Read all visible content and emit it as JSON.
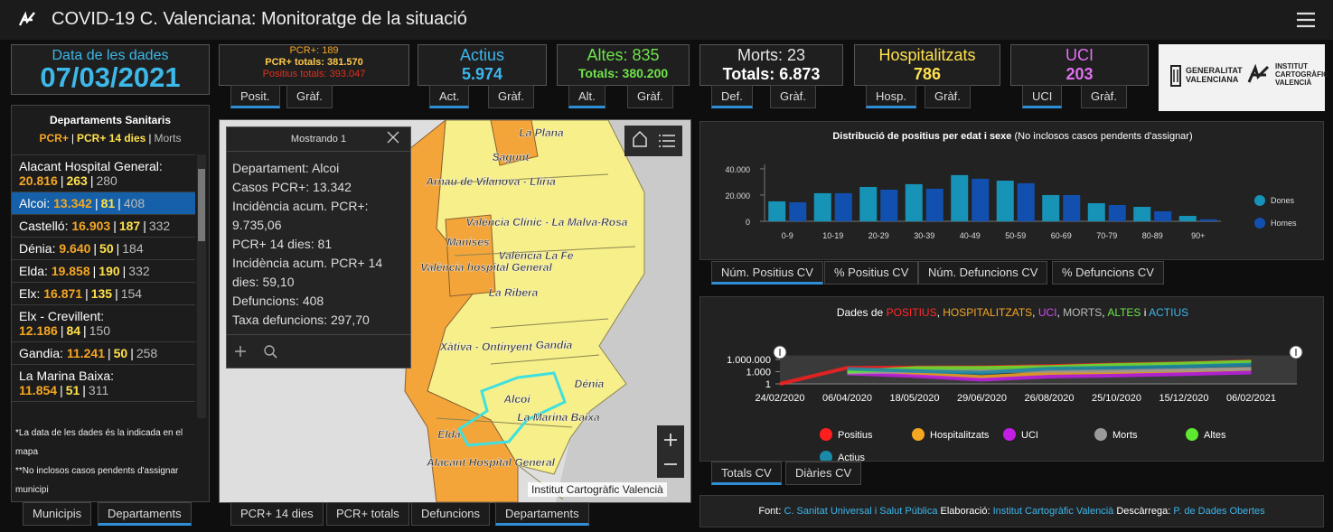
{
  "header": {
    "title": "COVID-19 C. Valenciana: Monitoratge de la situació"
  },
  "date_panel": {
    "label": "Data de les dades",
    "value": "07/03/2021"
  },
  "indicators": [
    {
      "lines": [
        {
          "text": "PCR+: 189",
          "color": "#f5a623"
        },
        {
          "text": "PCR+ totals: 381.570",
          "color": "#ffc94a"
        },
        {
          "text": "Positius totals: 393.047",
          "color": "#e0301e"
        }
      ],
      "tabs": [
        "Posit.",
        "Gràf."
      ]
    },
    {
      "lines": [
        {
          "text": "Actius",
          "color": "#3cb6ec"
        },
        {
          "text": "5.974",
          "color": "#3cb6ec"
        }
      ],
      "tabs": [
        "Act.",
        "Gràf."
      ]
    },
    {
      "lines": [
        {
          "text": "Altes: 835",
          "color": "#6fe34a"
        },
        {
          "text": "Totals: 380.200",
          "color": "#6fe34a"
        }
      ],
      "tabs": [
        "Alt.",
        "Gràf."
      ]
    },
    {
      "lines": [
        {
          "text": "Morts: 23",
          "color": "#e6e6e6"
        },
        {
          "text": "Totals: 6.873",
          "color": "#ffffff"
        }
      ],
      "tabs": [
        "Def.",
        "Gràf."
      ]
    },
    {
      "lines": [
        {
          "text": "Hospitalitzats",
          "color": "#ffe14d"
        },
        {
          "text": "786",
          "color": "#ffe14d"
        }
      ],
      "tabs": [
        "Hosp.",
        "Gràf."
      ]
    },
    {
      "lines": [
        {
          "text": "UCI",
          "color": "#e070f0"
        },
        {
          "text": "203",
          "color": "#e070f0"
        }
      ],
      "tabs": [
        "UCI",
        "Gràf."
      ]
    }
  ],
  "logos": {
    "generalitat": [
      "GENERALITAT",
      "VALENCIANA"
    ],
    "institut": [
      "INSTITUT",
      "CARTOGRÀFIC",
      "VALENCIÀ"
    ]
  },
  "departments": {
    "title": "Departaments Sanitaris",
    "separator": "|",
    "value_colors": [
      "#f5a623",
      "#ffe14d",
      "#bbbbbb"
    ],
    "legend": [
      "PCR+",
      "PCR+ 14 dies",
      "Morts"
    ],
    "items": [
      {
        "name": "Alacant Hospital General:",
        "pcr": "20.816",
        "pcr14": "263",
        "morts": "280"
      },
      {
        "name": "Alcoi:",
        "pcr": "13.342",
        "pcr14": "81",
        "morts": "408",
        "selected": true
      },
      {
        "name": "Castelló:",
        "pcr": "16.903",
        "pcr14": "187",
        "morts": "332"
      },
      {
        "name": "Dénia:",
        "pcr": "9.640",
        "pcr14": "50",
        "morts": "184"
      },
      {
        "name": "Elda:",
        "pcr": "19.858",
        "pcr14": "190",
        "morts": "332"
      },
      {
        "name": "Elx:",
        "pcr": "16.871",
        "pcr14": "135",
        "morts": "154"
      },
      {
        "name": "Elx - Crevillent:",
        "pcr": "12.186",
        "pcr14": "84",
        "morts": "150"
      },
      {
        "name": "Gandia:",
        "pcr": "11.241",
        "pcr14": "50",
        "morts": "258"
      },
      {
        "name": "La Marina Baixa:",
        "pcr": "11.854",
        "pcr14": "51",
        "morts": "311"
      }
    ],
    "notes": [
      "*La data de les dades és la indicada en el mapa",
      "**No inclosos casos pendents d'assignar municipi"
    ],
    "tabs": [
      "Municipis",
      "Departaments"
    ]
  },
  "map": {
    "popup": {
      "title": "Mostrando 1",
      "lines": [
        "Departament: Alcoi",
        "Casos PCR+: 13.342",
        "Incidència acum. PCR+: 9.735,06",
        "PCR+ 14 dies: 81",
        "Incidència acum. PCR+ 14 dies: 59,10",
        "Defuncions: 408",
        "Taxa defuncions: 297,70"
      ]
    },
    "labels": [
      "La Plana",
      "Sagunt",
      "Arnau de Vilanova - Llíria",
      "València Clínic - La Malva-Rosa",
      "Manises",
      "València La Fe",
      "València hospital General",
      "La Ribera",
      "Xàtiva - Ontinyent",
      "Gandia",
      "Dénia",
      "Alcoi",
      "La Marina Baixa",
      "Elda",
      "Alacant Hospital General"
    ],
    "attribution": "Institut Cartogràfic Valencià",
    "tabs": [
      "PCR+ 14 dies",
      "PCR+ totals",
      "Defuncions",
      "Departaments"
    ]
  },
  "chart_data": [
    {
      "type": "bar",
      "title": "Distribució de positius per edat i sexe",
      "subtitle": "(No inclosos casos pendents d'assignar)",
      "categories": [
        "0-9",
        "10-19",
        "20-29",
        "30-39",
        "40-49",
        "50-59",
        "60-69",
        "70-79",
        "80-89",
        "90+"
      ],
      "series": [
        {
          "name": "Dones",
          "color": "#1793b8",
          "values": [
            15200,
            21400,
            26200,
            28300,
            35200,
            31000,
            20000,
            13800,
            11000,
            4100
          ]
        },
        {
          "name": "Homes",
          "color": "#1250b0",
          "values": [
            14500,
            21400,
            24100,
            24800,
            32400,
            29000,
            20000,
            12400,
            7600,
            1500
          ]
        }
      ],
      "ylim": [
        0,
        42000
      ],
      "yticks": [
        0,
        {
          "value": 20000,
          "label": "20.000"
        },
        {
          "value": 40000,
          "label": "40.000"
        }
      ],
      "tabs": [
        "Núm. Positius CV",
        "% Positius CV",
        "Núm. Defuncions CV",
        "% Defuncions CV"
      ]
    },
    {
      "type": "line",
      "log_scale": true,
      "title_parts": [
        {
          "text": "Dades de ",
          "color": "#ffffff"
        },
        {
          "text": "POSITIUS",
          "color": "#ff2a2a"
        },
        {
          "text": ", ",
          "color": "#ffffff"
        },
        {
          "text": "HOSPITALITZATS",
          "color": "#f5a623"
        },
        {
          "text": ", ",
          "color": "#ffffff"
        },
        {
          "text": "UCI",
          "color": "#d14ef0"
        },
        {
          "text": ", ",
          "color": "#ffffff"
        },
        {
          "text": "MORTS",
          "color": "#bbbbbb"
        },
        {
          "text": ", ",
          "color": "#ffffff"
        },
        {
          "text": "ALTES",
          "color": "#6fe34a"
        },
        {
          "text": " i ",
          "color": "#ffffff"
        },
        {
          "text": "ACTIUS",
          "color": "#3cb6ec"
        }
      ],
      "categories": [
        "24/02/2020",
        "06/04/2020",
        "18/05/2020",
        "29/06/2020",
        "26/08/2020",
        "25/10/2020",
        "15/12/2020",
        "06/02/2021"
      ],
      "series": [
        {
          "name": "Positius",
          "color": "#ff1e1e",
          "values": [
            1,
            9000,
            11000,
            12000,
            25000,
            60000,
            120000,
            350000
          ]
        },
        {
          "name": "Hospitalitzats",
          "color": "#f5a623",
          "values": [
            null,
            2000,
            300,
            50,
            400,
            700,
            1600,
            4500
          ]
        },
        {
          "name": "UCI",
          "color": "#c21ee6",
          "values": [
            null,
            350,
            80,
            10,
            60,
            110,
            250,
            600
          ]
        },
        {
          "name": "Morts",
          "color": "#9a9a9a",
          "values": [
            null,
            600,
            1300,
            1400,
            1500,
            1800,
            2800,
            5500
          ]
        },
        {
          "name": "Altes",
          "color": "#5ee830",
          "values": [
            null,
            1000,
            8000,
            9000,
            15000,
            45000,
            100000,
            280000
          ]
        },
        {
          "name": "Actius",
          "color": "#1a8aa8",
          "values": [
            null,
            5000,
            1500,
            500,
            6000,
            10000,
            20000,
            60000
          ]
        }
      ],
      "ylim": [
        1,
        10000000
      ],
      "yticks": [
        1,
        {
          "value": 1000,
          "label": "1.000"
        },
        {
          "value": 1000000,
          "label": "1.000.000"
        }
      ],
      "tabs": [
        "Totals CV",
        "Diàries CV"
      ]
    }
  ],
  "footer": [
    {
      "text": "Font: ",
      "color": "#ffffff"
    },
    {
      "text": "C. Sanitat Universal i Salut Pública",
      "color": "#3cb6ec"
    },
    {
      "text": " Elaboració: ",
      "color": "#ffffff"
    },
    {
      "text": "Institut Cartogràfic Valencià",
      "color": "#3cb6ec"
    },
    {
      "text": " Descàrrega: ",
      "color": "#ffffff"
    },
    {
      "text": "P. de Dades Obertes",
      "color": "#3cb6ec"
    }
  ]
}
